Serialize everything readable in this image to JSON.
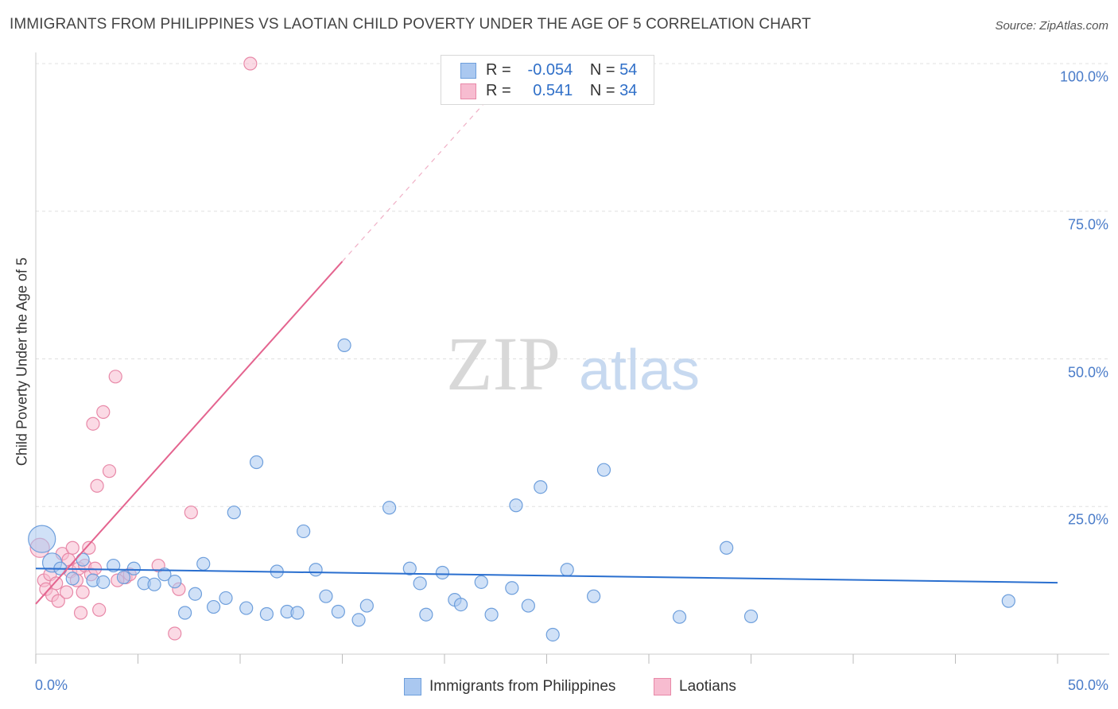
{
  "title": "IMMIGRANTS FROM PHILIPPINES VS LAOTIAN CHILD POVERTY UNDER THE AGE OF 5 CORRELATION CHART",
  "source": "Source: ZipAtlas.com",
  "watermark": {
    "zip": "ZIP",
    "atlas": "atlas"
  },
  "colors": {
    "blue_fill": "#aac8f0",
    "blue_stroke": "#6e9fdc",
    "blue_line": "#2a6fcf",
    "pink_fill": "#f7bcd0",
    "pink_stroke": "#e889a8",
    "pink_line": "#e4648f",
    "tick_text": "#4a7cc9",
    "grid": "#e0e0e0"
  },
  "legend": {
    "rows": [
      {
        "r_label": "R =",
        "r_value": "-0.054",
        "n_label": "N =",
        "n_value": "54"
      },
      {
        "r_label": "R =",
        "r_value": "0.541",
        "n_label": "N =",
        "n_value": "34"
      }
    ],
    "bottom": [
      "Immigrants from Philippines",
      "Laotians"
    ]
  },
  "chart_data": {
    "type": "scatter",
    "title": "IMMIGRANTS FROM PHILIPPINES VS LAOTIAN CHILD POVERTY UNDER THE AGE OF 5 CORRELATION CHART",
    "xlabel": "",
    "ylabel": "Child Poverty Under the Age of 5",
    "xlim": [
      0,
      50
    ],
    "ylim": [
      0,
      100
    ],
    "x_tick_labels": [
      "0.0%",
      "50.0%"
    ],
    "y_ticks": [
      25,
      50,
      75,
      100
    ],
    "y_tick_labels": [
      "25.0%",
      "50.0%",
      "75.0%",
      "100.0%"
    ],
    "grid": true,
    "legend_position": "top-center",
    "series": [
      {
        "name": "Immigrants from Philippines",
        "r": -0.054,
        "n": 54,
        "trend": {
          "x": [
            0,
            50
          ],
          "y": [
            14.5,
            12.1
          ]
        },
        "points": [
          {
            "x": 0.3,
            "y": 19.5,
            "size": "large"
          },
          {
            "x": 0.8,
            "y": 15.5,
            "size": "medium"
          },
          {
            "x": 1.2,
            "y": 14.5
          },
          {
            "x": 1.8,
            "y": 12.8
          },
          {
            "x": 2.3,
            "y": 16.0
          },
          {
            "x": 2.8,
            "y": 12.5
          },
          {
            "x": 3.3,
            "y": 12.2
          },
          {
            "x": 3.8,
            "y": 15.0
          },
          {
            "x": 4.3,
            "y": 13.0
          },
          {
            "x": 4.8,
            "y": 14.5
          },
          {
            "x": 5.3,
            "y": 12.0
          },
          {
            "x": 5.8,
            "y": 11.8
          },
          {
            "x": 6.3,
            "y": 13.5
          },
          {
            "x": 6.8,
            "y": 12.3
          },
          {
            "x": 7.3,
            "y": 7.0
          },
          {
            "x": 7.8,
            "y": 10.2
          },
          {
            "x": 8.2,
            "y": 15.3
          },
          {
            "x": 8.7,
            "y": 8.0
          },
          {
            "x": 9.3,
            "y": 9.5
          },
          {
            "x": 9.7,
            "y": 24.0
          },
          {
            "x": 10.3,
            "y": 7.8
          },
          {
            "x": 10.8,
            "y": 32.5
          },
          {
            "x": 11.3,
            "y": 6.8
          },
          {
            "x": 11.8,
            "y": 14.0
          },
          {
            "x": 12.3,
            "y": 7.2
          },
          {
            "x": 12.8,
            "y": 7.0
          },
          {
            "x": 13.1,
            "y": 20.8
          },
          {
            "x": 13.7,
            "y": 14.3
          },
          {
            "x": 14.2,
            "y": 9.8
          },
          {
            "x": 14.8,
            "y": 7.2
          },
          {
            "x": 15.1,
            "y": 52.3
          },
          {
            "x": 15.8,
            "y": 5.8
          },
          {
            "x": 16.2,
            "y": 8.2
          },
          {
            "x": 17.3,
            "y": 24.8
          },
          {
            "x": 18.3,
            "y": 14.5
          },
          {
            "x": 18.8,
            "y": 12.0
          },
          {
            "x": 19.1,
            "y": 6.7
          },
          {
            "x": 19.9,
            "y": 13.8
          },
          {
            "x": 20.5,
            "y": 9.2
          },
          {
            "x": 20.8,
            "y": 8.4
          },
          {
            "x": 21.8,
            "y": 12.2
          },
          {
            "x": 22.3,
            "y": 6.7
          },
          {
            "x": 23.3,
            "y": 11.2
          },
          {
            "x": 23.5,
            "y": 25.2
          },
          {
            "x": 24.1,
            "y": 8.2
          },
          {
            "x": 24.7,
            "y": 28.3
          },
          {
            "x": 25.3,
            "y": 3.3
          },
          {
            "x": 26.0,
            "y": 14.3
          },
          {
            "x": 27.3,
            "y": 9.8
          },
          {
            "x": 27.8,
            "y": 31.2
          },
          {
            "x": 31.5,
            "y": 6.3
          },
          {
            "x": 33.8,
            "y": 18.0
          },
          {
            "x": 35.0,
            "y": 6.4
          },
          {
            "x": 47.6,
            "y": 9.0
          }
        ]
      },
      {
        "name": "Laotians",
        "r": 0.541,
        "n": 34,
        "trend": {
          "x": [
            0,
            15
          ],
          "y": [
            8.5,
            66.5
          ]
        },
        "trend_dashed": {
          "x": [
            15,
            22
          ],
          "y": [
            66.5,
            93.5
          ]
        },
        "points": [
          {
            "x": 0.2,
            "y": 18.0,
            "size": "medium"
          },
          {
            "x": 0.4,
            "y": 12.5
          },
          {
            "x": 0.5,
            "y": 11.0
          },
          {
            "x": 0.7,
            "y": 13.5
          },
          {
            "x": 0.8,
            "y": 10.0
          },
          {
            "x": 1.0,
            "y": 12.0
          },
          {
            "x": 1.1,
            "y": 9.0
          },
          {
            "x": 1.3,
            "y": 17.0
          },
          {
            "x": 1.5,
            "y": 10.5
          },
          {
            "x": 1.6,
            "y": 16.0
          },
          {
            "x": 1.7,
            "y": 14.0
          },
          {
            "x": 1.8,
            "y": 18.0
          },
          {
            "x": 2.0,
            "y": 12.5
          },
          {
            "x": 2.1,
            "y": 14.5
          },
          {
            "x": 2.2,
            "y": 7.0
          },
          {
            "x": 2.3,
            "y": 10.5
          },
          {
            "x": 2.4,
            "y": 15.0
          },
          {
            "x": 2.6,
            "y": 18.0
          },
          {
            "x": 2.7,
            "y": 13.5
          },
          {
            "x": 2.8,
            "y": 39.0
          },
          {
            "x": 2.9,
            "y": 14.5
          },
          {
            "x": 3.0,
            "y": 28.5
          },
          {
            "x": 3.1,
            "y": 7.5
          },
          {
            "x": 3.3,
            "y": 41.0
          },
          {
            "x": 3.6,
            "y": 31.0
          },
          {
            "x": 3.9,
            "y": 47.0
          },
          {
            "x": 4.4,
            "y": 13.0
          },
          {
            "x": 4.6,
            "y": 13.5
          },
          {
            "x": 6.0,
            "y": 15.0
          },
          {
            "x": 6.8,
            "y": 3.5
          },
          {
            "x": 7.0,
            "y": 11.0
          },
          {
            "x": 7.6,
            "y": 24.0
          },
          {
            "x": 10.5,
            "y": 100.0
          },
          {
            "x": 4.0,
            "y": 12.5
          }
        ]
      }
    ]
  }
}
